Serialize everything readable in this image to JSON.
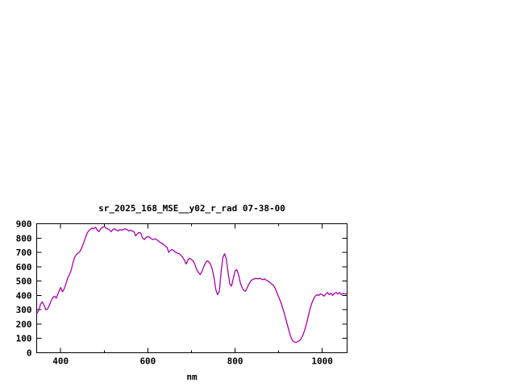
{
  "page": {
    "background": "#ffffff"
  },
  "chart_data": {
    "type": "line",
    "title": "sr_2025_168_MSE__y02_r_rad 07-38-00",
    "xlabel": "nm",
    "ylabel": "",
    "grid": "off",
    "legend": "off",
    "axis_color": "#000000",
    "line_color": "#aa00aa",
    "x_range": [
      345,
      1057
    ],
    "y_range": [
      0,
      900
    ],
    "x_ticks_labeled": [
      400,
      600,
      800,
      1000
    ],
    "x_ticks_minor": [
      500,
      700,
      900
    ],
    "y_ticks": [
      0,
      100,
      200,
      300,
      400,
      500,
      600,
      700,
      800,
      900
    ],
    "series": [
      {
        "name": "spectral-radiance",
        "points": [
          [
            345,
            270
          ],
          [
            350,
            300
          ],
          [
            354,
            340
          ],
          [
            358,
            355
          ],
          [
            362,
            330
          ],
          [
            366,
            300
          ],
          [
            370,
            305
          ],
          [
            374,
            330
          ],
          [
            378,
            360
          ],
          [
            382,
            385
          ],
          [
            386,
            395
          ],
          [
            390,
            380
          ],
          [
            395,
            420
          ],
          [
            400,
            455
          ],
          [
            404,
            425
          ],
          [
            408,
            445
          ],
          [
            412,
            480
          ],
          [
            416,
            520
          ],
          [
            420,
            545
          ],
          [
            424,
            575
          ],
          [
            428,
            625
          ],
          [
            432,
            665
          ],
          [
            436,
            685
          ],
          [
            440,
            695
          ],
          [
            444,
            705
          ],
          [
            448,
            730
          ],
          [
            452,
            760
          ],
          [
            456,
            795
          ],
          [
            460,
            830
          ],
          [
            464,
            850
          ],
          [
            468,
            860
          ],
          [
            472,
            870
          ],
          [
            476,
            865
          ],
          [
            480,
            875
          ],
          [
            484,
            855
          ],
          [
            488,
            845
          ],
          [
            492,
            865
          ],
          [
            496,
            875
          ],
          [
            500,
            880
          ],
          [
            504,
            870
          ],
          [
            508,
            865
          ],
          [
            512,
            855
          ],
          [
            516,
            845
          ],
          [
            520,
            860
          ],
          [
            524,
            865
          ],
          [
            528,
            855
          ],
          [
            532,
            850
          ],
          [
            536,
            860
          ],
          [
            540,
            855
          ],
          [
            544,
            860
          ],
          [
            548,
            865
          ],
          [
            552,
            860
          ],
          [
            556,
            850
          ],
          [
            560,
            855
          ],
          [
            564,
            850
          ],
          [
            568,
            845
          ],
          [
            572,
            815
          ],
          [
            576,
            830
          ],
          [
            580,
            840
          ],
          [
            584,
            835
          ],
          [
            588,
            800
          ],
          [
            592,
            790
          ],
          [
            596,
            805
          ],
          [
            600,
            810
          ],
          [
            604,
            805
          ],
          [
            608,
            795
          ],
          [
            612,
            790
          ],
          [
            616,
            795
          ],
          [
            620,
            790
          ],
          [
            624,
            780
          ],
          [
            628,
            770
          ],
          [
            632,
            765
          ],
          [
            636,
            755
          ],
          [
            640,
            745
          ],
          [
            644,
            735
          ],
          [
            648,
            700
          ],
          [
            652,
            715
          ],
          [
            656,
            720
          ],
          [
            660,
            710
          ],
          [
            664,
            700
          ],
          [
            668,
            695
          ],
          [
            672,
            690
          ],
          [
            676,
            680
          ],
          [
            680,
            665
          ],
          [
            684,
            645
          ],
          [
            688,
            620
          ],
          [
            692,
            645
          ],
          [
            696,
            660
          ],
          [
            700,
            650
          ],
          [
            704,
            640
          ],
          [
            708,
            615
          ],
          [
            712,
            580
          ],
          [
            716,
            560
          ],
          [
            720,
            545
          ],
          [
            724,
            565
          ],
          [
            728,
            600
          ],
          [
            732,
            625
          ],
          [
            736,
            640
          ],
          [
            740,
            635
          ],
          [
            744,
            615
          ],
          [
            748,
            580
          ],
          [
            752,
            520
          ],
          [
            756,
            440
          ],
          [
            760,
            405
          ],
          [
            764,
            430
          ],
          [
            768,
            560
          ],
          [
            772,
            665
          ],
          [
            776,
            690
          ],
          [
            780,
            655
          ],
          [
            784,
            560
          ],
          [
            788,
            480
          ],
          [
            792,
            465
          ],
          [
            796,
            520
          ],
          [
            800,
            570
          ],
          [
            804,
            580
          ],
          [
            808,
            545
          ],
          [
            812,
            490
          ],
          [
            816,
            455
          ],
          [
            820,
            435
          ],
          [
            824,
            430
          ],
          [
            828,
            455
          ],
          [
            832,
            480
          ],
          [
            836,
            500
          ],
          [
            840,
            510
          ],
          [
            844,
            515
          ],
          [
            848,
            520
          ],
          [
            852,
            515
          ],
          [
            856,
            520
          ],
          [
            860,
            515
          ],
          [
            864,
            510
          ],
          [
            868,
            515
          ],
          [
            872,
            505
          ],
          [
            876,
            500
          ],
          [
            880,
            490
          ],
          [
            884,
            480
          ],
          [
            888,
            470
          ],
          [
            892,
            450
          ],
          [
            896,
            420
          ],
          [
            900,
            390
          ],
          [
            904,
            360
          ],
          [
            908,
            325
          ],
          [
            912,
            285
          ],
          [
            916,
            240
          ],
          [
            920,
            195
          ],
          [
            924,
            150
          ],
          [
            928,
            110
          ],
          [
            932,
            85
          ],
          [
            936,
            75
          ],
          [
            940,
            72
          ],
          [
            944,
            78
          ],
          [
            948,
            85
          ],
          [
            952,
            100
          ],
          [
            956,
            125
          ],
          [
            960,
            160
          ],
          [
            964,
            205
          ],
          [
            968,
            255
          ],
          [
            972,
            305
          ],
          [
            976,
            345
          ],
          [
            980,
            375
          ],
          [
            984,
            395
          ],
          [
            988,
            405
          ],
          [
            992,
            400
          ],
          [
            996,
            410
          ],
          [
            1000,
            405
          ],
          [
            1004,
            395
          ],
          [
            1008,
            410
          ],
          [
            1012,
            420
          ],
          [
            1016,
            405
          ],
          [
            1020,
            415
          ],
          [
            1024,
            400
          ],
          [
            1028,
            415
          ],
          [
            1032,
            420
          ],
          [
            1036,
            410
          ],
          [
            1040,
            420
          ],
          [
            1044,
            405
          ],
          [
            1048,
            415
          ],
          [
            1052,
            410
          ],
          [
            1056,
            412
          ]
        ]
      }
    ]
  }
}
